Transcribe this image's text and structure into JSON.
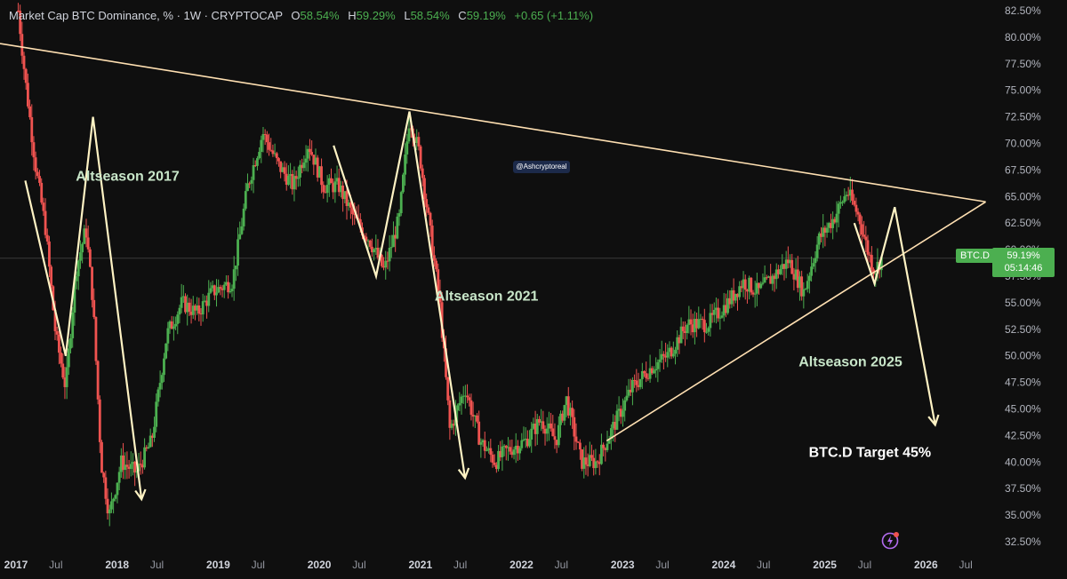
{
  "header": {
    "title": "Market Cap BTC Dominance, % · 1W · CRYPTOCAP",
    "open_label": "O",
    "open": "58.54%",
    "high_label": "H",
    "high": "59.29%",
    "low_label": "L",
    "low": "58.54%",
    "close_label": "C",
    "close": "59.19%",
    "change": "+0.65 (+1.11%)"
  },
  "watermark": "@Ashcryptoreal",
  "price_tag": {
    "symbol": "BTC.D",
    "price": "59.19%",
    "countdown": "05:14:46"
  },
  "colors": {
    "background": "#0f0f0f",
    "up": "#4caf50",
    "down": "#ef5350",
    "annotation": "#fff3c4",
    "trendline": "#ffe0b2"
  },
  "chart_data": {
    "type": "candlestick",
    "y_unit": "%",
    "ylim": [
      31.5,
      83.5
    ],
    "y_ticks": [
      "82.50%",
      "80.00%",
      "77.50%",
      "75.00%",
      "72.50%",
      "70.00%",
      "67.50%",
      "65.00%",
      "62.50%",
      "60.00%",
      "57.50%",
      "55.00%",
      "52.50%",
      "50.00%",
      "47.50%",
      "45.00%",
      "42.50%",
      "40.00%",
      "37.50%",
      "35.00%",
      "32.50%"
    ],
    "x_ticks": [
      "2017",
      "Jul",
      "2018",
      "Jul",
      "2019",
      "Jul",
      "2020",
      "Jul",
      "2021",
      "Jul",
      "2022",
      "Jul",
      "2023",
      "Jul",
      "2024",
      "Jul",
      "2025",
      "Jul",
      "2026",
      "Jul"
    ],
    "x_range": [
      2017.0,
      2026.78
    ],
    "series": [
      {
        "type": "price-path",
        "points": [
          [
            2017.18,
            82.5
          ],
          [
            2017.25,
            76
          ],
          [
            2017.35,
            68
          ],
          [
            2017.45,
            62
          ],
          [
            2017.55,
            52
          ],
          [
            2017.65,
            47
          ],
          [
            2017.75,
            58
          ],
          [
            2017.85,
            62
          ],
          [
            2017.92,
            55
          ],
          [
            2018.0,
            40
          ],
          [
            2018.08,
            35
          ],
          [
            2018.2,
            40
          ],
          [
            2018.35,
            39
          ],
          [
            2018.5,
            42
          ],
          [
            2018.65,
            52
          ],
          [
            2018.8,
            55
          ],
          [
            2018.95,
            54
          ],
          [
            2019.1,
            56
          ],
          [
            2019.3,
            57
          ],
          [
            2019.45,
            66
          ],
          [
            2019.6,
            71
          ],
          [
            2019.75,
            68
          ],
          [
            2019.9,
            66
          ],
          [
            2020.05,
            70
          ],
          [
            2020.2,
            66
          ],
          [
            2020.35,
            66
          ],
          [
            2020.5,
            63
          ],
          [
            2020.65,
            61
          ],
          [
            2020.8,
            58
          ],
          [
            2020.95,
            63
          ],
          [
            2021.05,
            72.5
          ],
          [
            2021.15,
            69
          ],
          [
            2021.25,
            62
          ],
          [
            2021.35,
            55
          ],
          [
            2021.45,
            43
          ],
          [
            2021.6,
            47
          ],
          [
            2021.75,
            42
          ],
          [
            2021.9,
            40
          ],
          [
            2022.0,
            41
          ],
          [
            2022.2,
            42
          ],
          [
            2022.35,
            44
          ],
          [
            2022.5,
            42
          ],
          [
            2022.6,
            46
          ],
          [
            2022.75,
            40
          ],
          [
            2022.9,
            40
          ],
          [
            2023.05,
            43
          ],
          [
            2023.25,
            47
          ],
          [
            2023.45,
            49
          ],
          [
            2023.6,
            50
          ],
          [
            2023.8,
            53
          ],
          [
            2024.0,
            53
          ],
          [
            2024.2,
            55
          ],
          [
            2024.35,
            57
          ],
          [
            2024.5,
            56
          ],
          [
            2024.65,
            57.5
          ],
          [
            2024.8,
            59
          ],
          [
            2024.95,
            56
          ],
          [
            2025.1,
            61
          ],
          [
            2025.25,
            63
          ],
          [
            2025.38,
            65.5
          ],
          [
            2025.5,
            63
          ],
          [
            2025.58,
            60
          ],
          [
            2025.65,
            58
          ],
          [
            2025.72,
            59.19
          ]
        ]
      }
    ],
    "trendlines": [
      {
        "from": [
          2017.0,
          79.4
        ],
        "to": [
          2026.75,
          64.5
        ]
      },
      {
        "from": [
          2023.0,
          42.0
        ],
        "to": [
          2026.75,
          64.5
        ]
      }
    ],
    "annotation_arrows": [
      {
        "points": [
          [
            2017.25,
            66.5
          ],
          [
            2017.65,
            50.0
          ],
          [
            2017.92,
            72.5
          ],
          [
            2018.4,
            36.5
          ]
        ]
      },
      {
        "points": [
          [
            2020.3,
            69.8
          ],
          [
            2020.72,
            57.5
          ],
          [
            2021.05,
            73.0
          ],
          [
            2021.6,
            38.5
          ]
        ]
      },
      {
        "points": [
          [
            2025.45,
            62.5
          ],
          [
            2025.65,
            56.8
          ],
          [
            2025.85,
            64.0
          ],
          [
            2026.25,
            43.5
          ]
        ]
      }
    ],
    "annotations": [
      {
        "text": "Altseason 2017",
        "x": 2017.75,
        "y": 66.5
      },
      {
        "text": "Altseason 2021",
        "x": 2021.3,
        "y": 55.2
      },
      {
        "text": "Altseason 2025",
        "x": 2024.9,
        "y": 49.0
      },
      {
        "text": "BTC.D Target 45%",
        "x": 2025.0,
        "y": 40.5
      }
    ],
    "last_value": 59.19
  }
}
